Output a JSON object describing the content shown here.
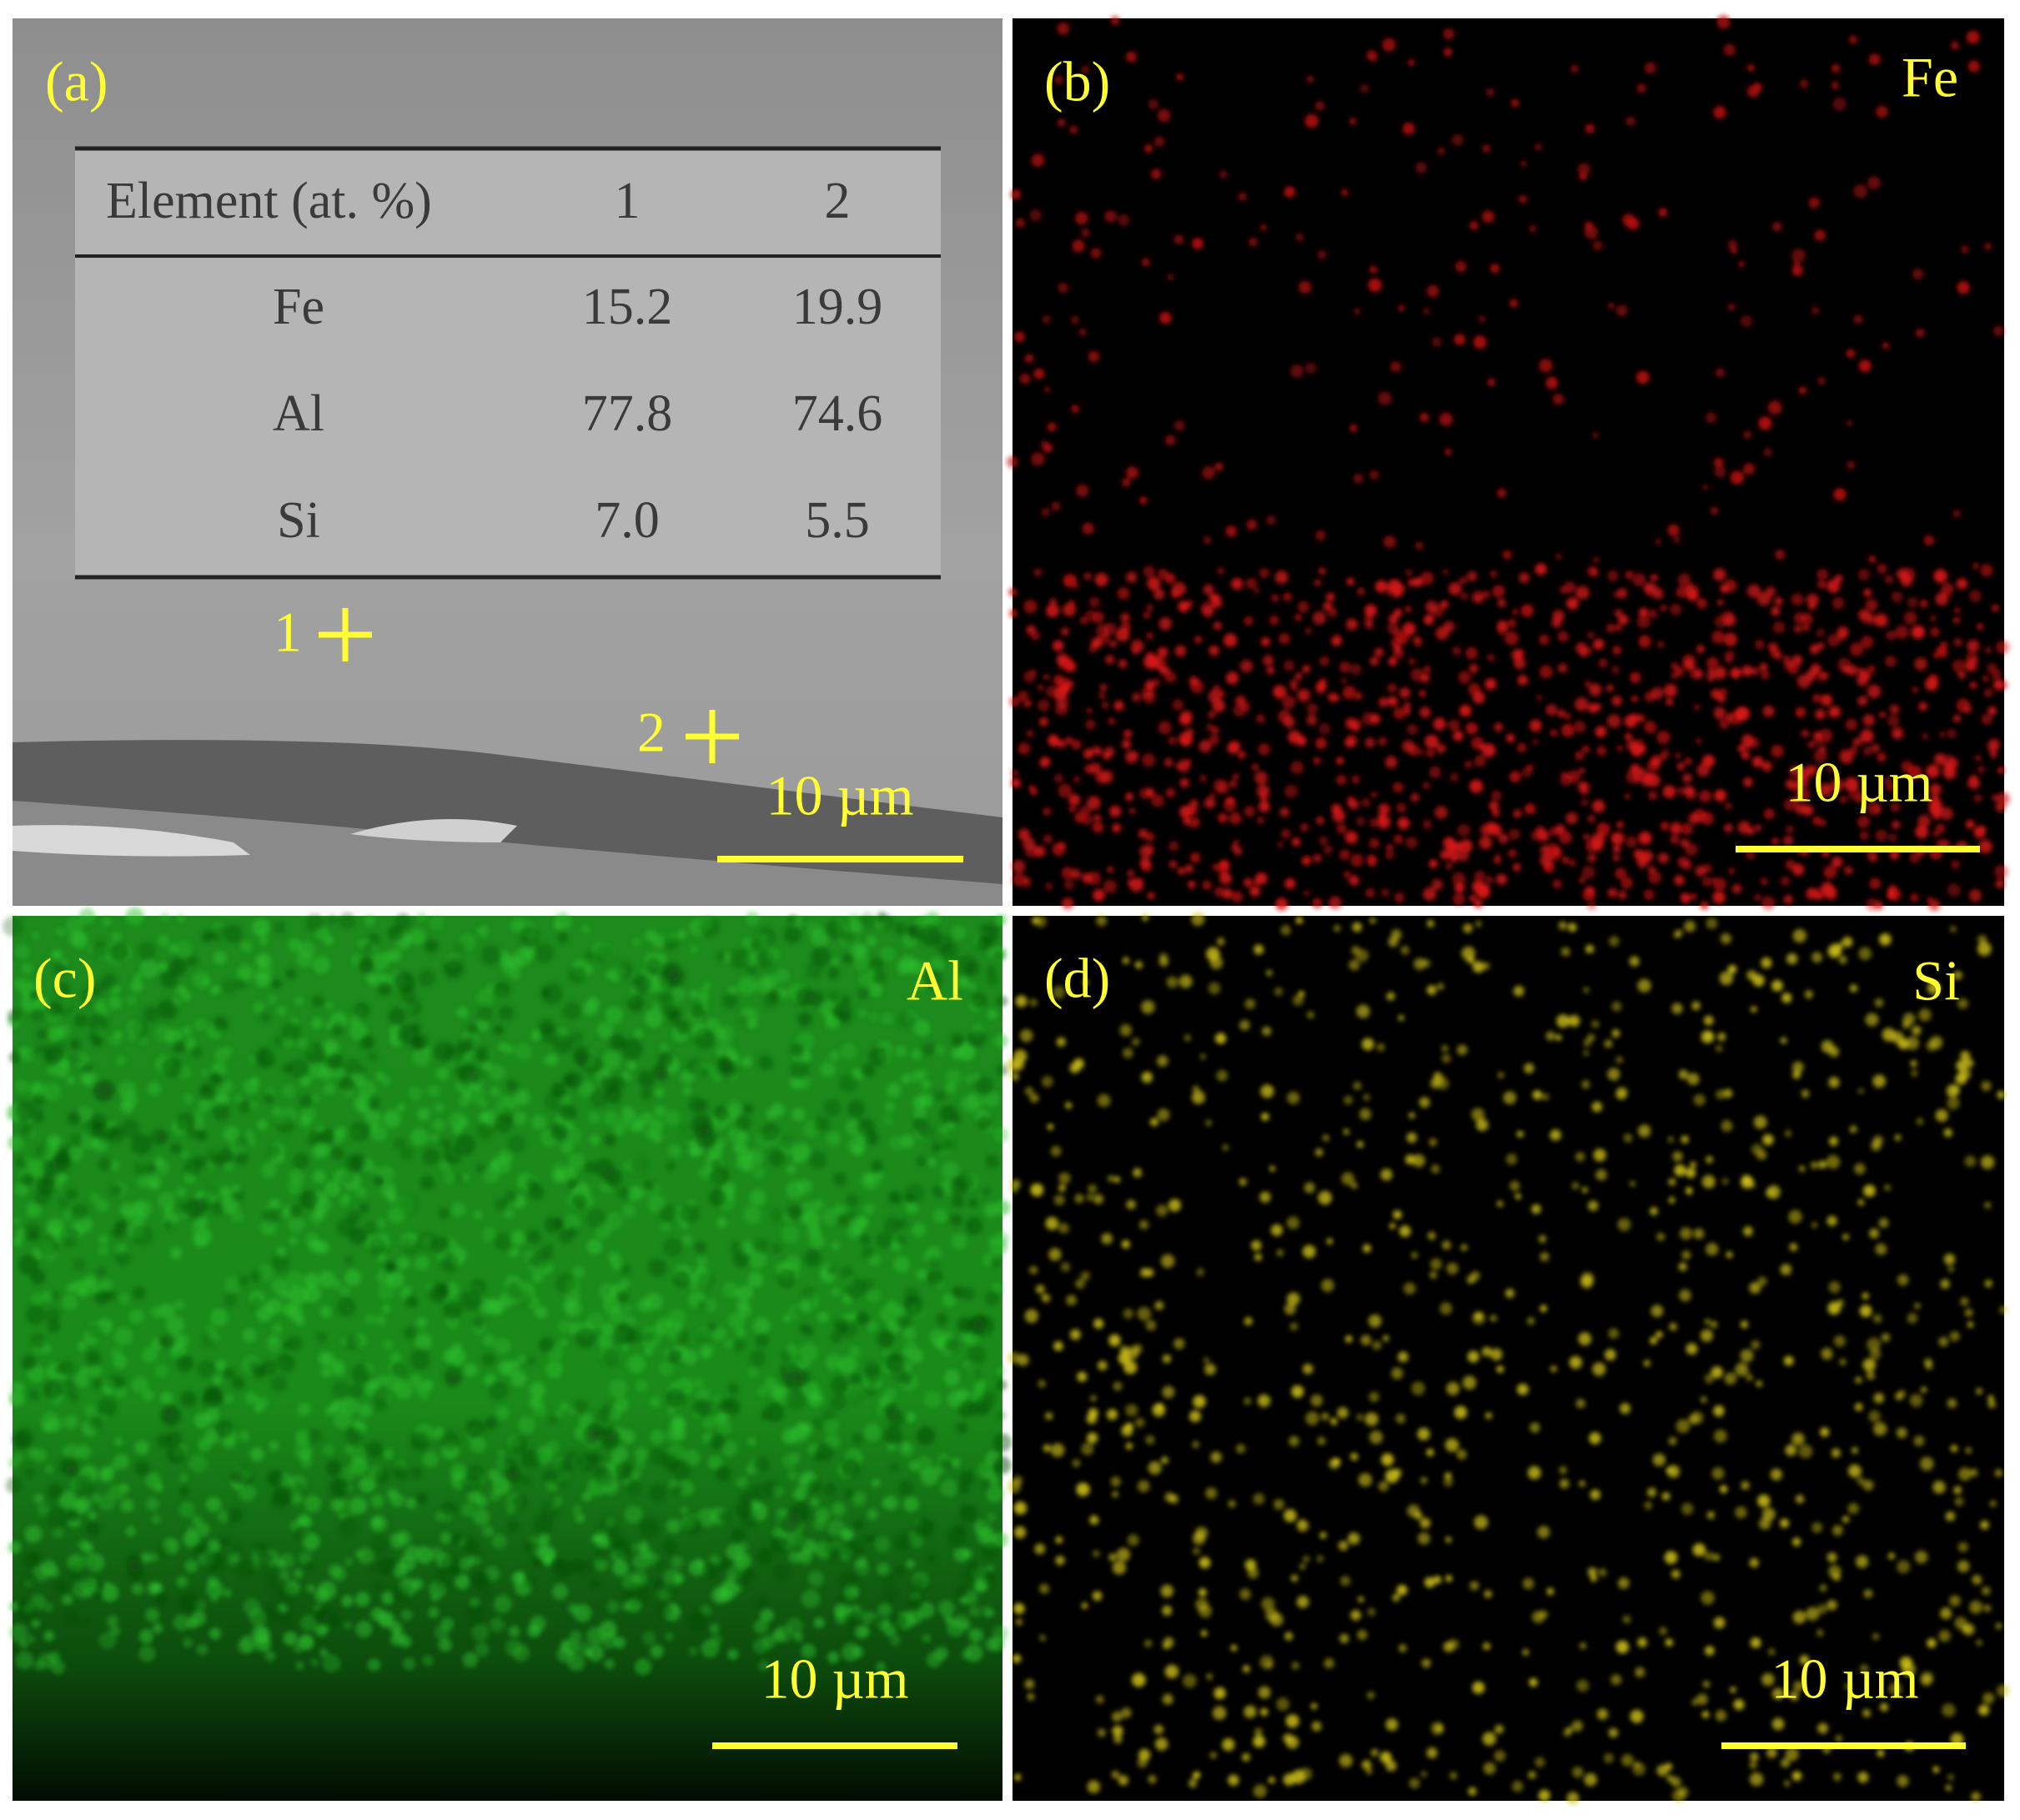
{
  "panels": [
    {
      "label": "(a)",
      "scale_bar": "10 µm",
      "points": [
        "1",
        "2"
      ]
    },
    {
      "label": "(b)",
      "element": "Fe",
      "scale_bar": "10 µm"
    },
    {
      "label": "(c)",
      "element": "Al",
      "scale_bar": "10 µm"
    },
    {
      "label": "(d)",
      "element": "Si",
      "scale_bar": "10 µm"
    }
  ],
  "table": {
    "header": [
      "Element (at. %)",
      "1",
      "2"
    ],
    "rows": [
      [
        "Fe",
        "15.2",
        "19.9"
      ],
      [
        "Al",
        "77.8",
        "74.6"
      ],
      [
        "Si",
        "7.0",
        "5.5"
      ]
    ]
  }
}
